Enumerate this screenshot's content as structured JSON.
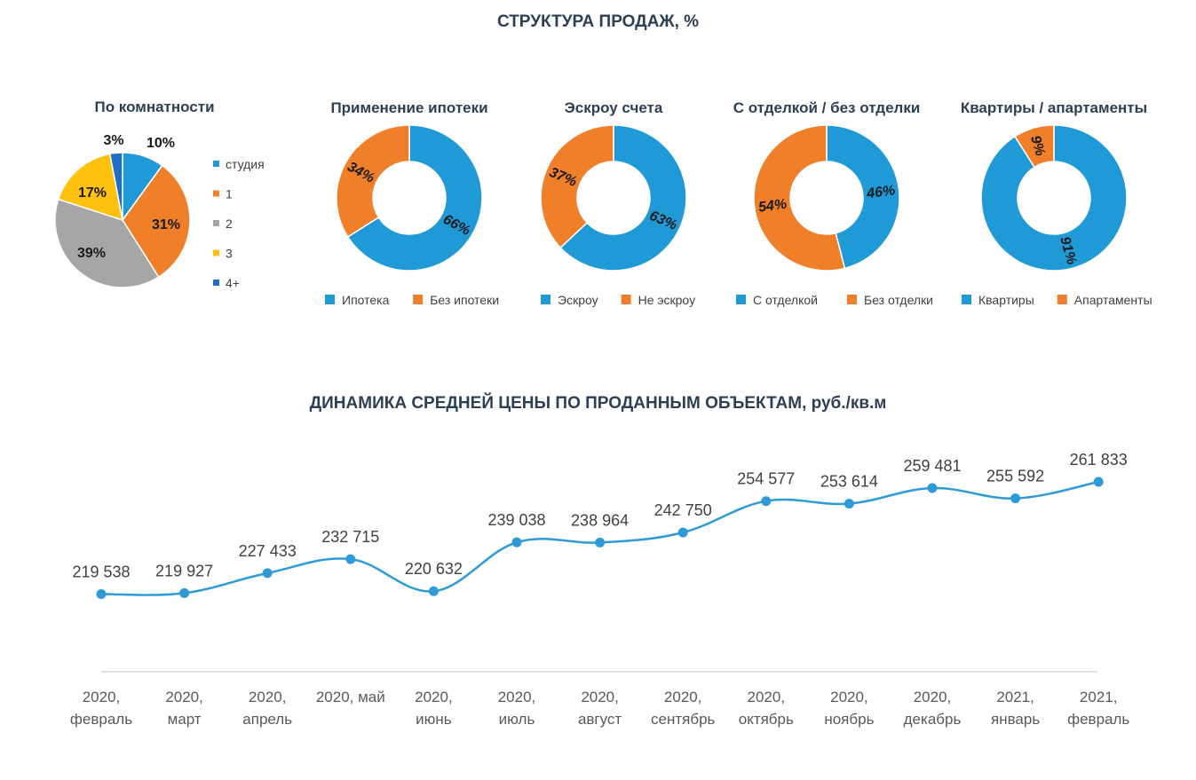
{
  "main_title": "СТРУКТУРА ПРОДАЖ, %",
  "line_title": "ДИНАМИКА СРЕДНЕЙ ЦЕНЫ ПО ПРОДАННЫМ ОБЪЕКТАМ, руб./кв.м",
  "chart_data": [
    {
      "type": "pie",
      "title": "По комнатности",
      "categories": [
        "студия",
        "1",
        "2",
        "3",
        "4+"
      ],
      "values": [
        10,
        31,
        39,
        17,
        3
      ],
      "labels": [
        "10%",
        "31%",
        "39%",
        "17%",
        "3%"
      ],
      "colors": [
        "#1f9ad6",
        "#f07f2a",
        "#a6a6a6",
        "#fec10d",
        "#1f6fc4"
      ],
      "legend": "right"
    },
    {
      "type": "pie",
      "subtype": "donut",
      "title": "Применение ипотеки",
      "categories": [
        "Ипотека",
        "Без ипотеки"
      ],
      "values": [
        66,
        34
      ],
      "labels": [
        "66%",
        "34%"
      ],
      "colors": [
        "#1f9ad6",
        "#f07f2a"
      ],
      "legend": "bottom"
    },
    {
      "type": "pie",
      "subtype": "donut",
      "title": "Эскроу счета",
      "categories": [
        "Эскроу",
        "Не эскроу"
      ],
      "values": [
        63,
        37
      ],
      "labels": [
        "63%",
        "37%"
      ],
      "colors": [
        "#1f9ad6",
        "#f07f2a"
      ],
      "legend": "bottom"
    },
    {
      "type": "pie",
      "subtype": "donut",
      "title": "С отделкой / без отделки",
      "categories": [
        "С отделкой",
        "Без отделки"
      ],
      "values": [
        46,
        54
      ],
      "labels": [
        "46%",
        "54%"
      ],
      "colors": [
        "#1f9ad6",
        "#f07f2a"
      ],
      "legend": "bottom"
    },
    {
      "type": "pie",
      "subtype": "donut",
      "title": "Квартиры / апартаменты",
      "categories": [
        "Квартиры",
        "Апартаменты"
      ],
      "values": [
        91,
        9
      ],
      "labels": [
        "91%",
        "9%"
      ],
      "colors": [
        "#1f9ad6",
        "#f07f2a"
      ],
      "legend": "bottom"
    },
    {
      "type": "line",
      "categories": [
        [
          "2020,",
          "февраль"
        ],
        [
          "2020,",
          "март"
        ],
        [
          "2020,",
          "апрель"
        ],
        [
          "2020, май"
        ],
        [
          "2020,",
          "июнь"
        ],
        [
          "2020,",
          "июль"
        ],
        [
          "2020,",
          "август"
        ],
        [
          "2020,",
          "сентябрь"
        ],
        [
          "2020,",
          "октябрь"
        ],
        [
          "2020,",
          "ноябрь"
        ],
        [
          "2020,",
          "декабрь"
        ],
        [
          "2021,",
          "январь"
        ],
        [
          "2021,",
          "февраль"
        ]
      ],
      "values": [
        219538,
        219927,
        227433,
        232715,
        220632,
        239038,
        238964,
        242750,
        254577,
        253614,
        259481,
        255592,
        261833
      ],
      "value_labels": [
        "219 538",
        "219 927",
        "227 433",
        "232 715",
        "220 632",
        "239 038",
        "238 964",
        "242 750",
        "254 577",
        "253 614",
        "259 481",
        "255 592",
        "261 833"
      ],
      "color": "#2e9bd6",
      "ylim": [
        185000,
        265000
      ],
      "grid": false,
      "smooth": true
    }
  ]
}
